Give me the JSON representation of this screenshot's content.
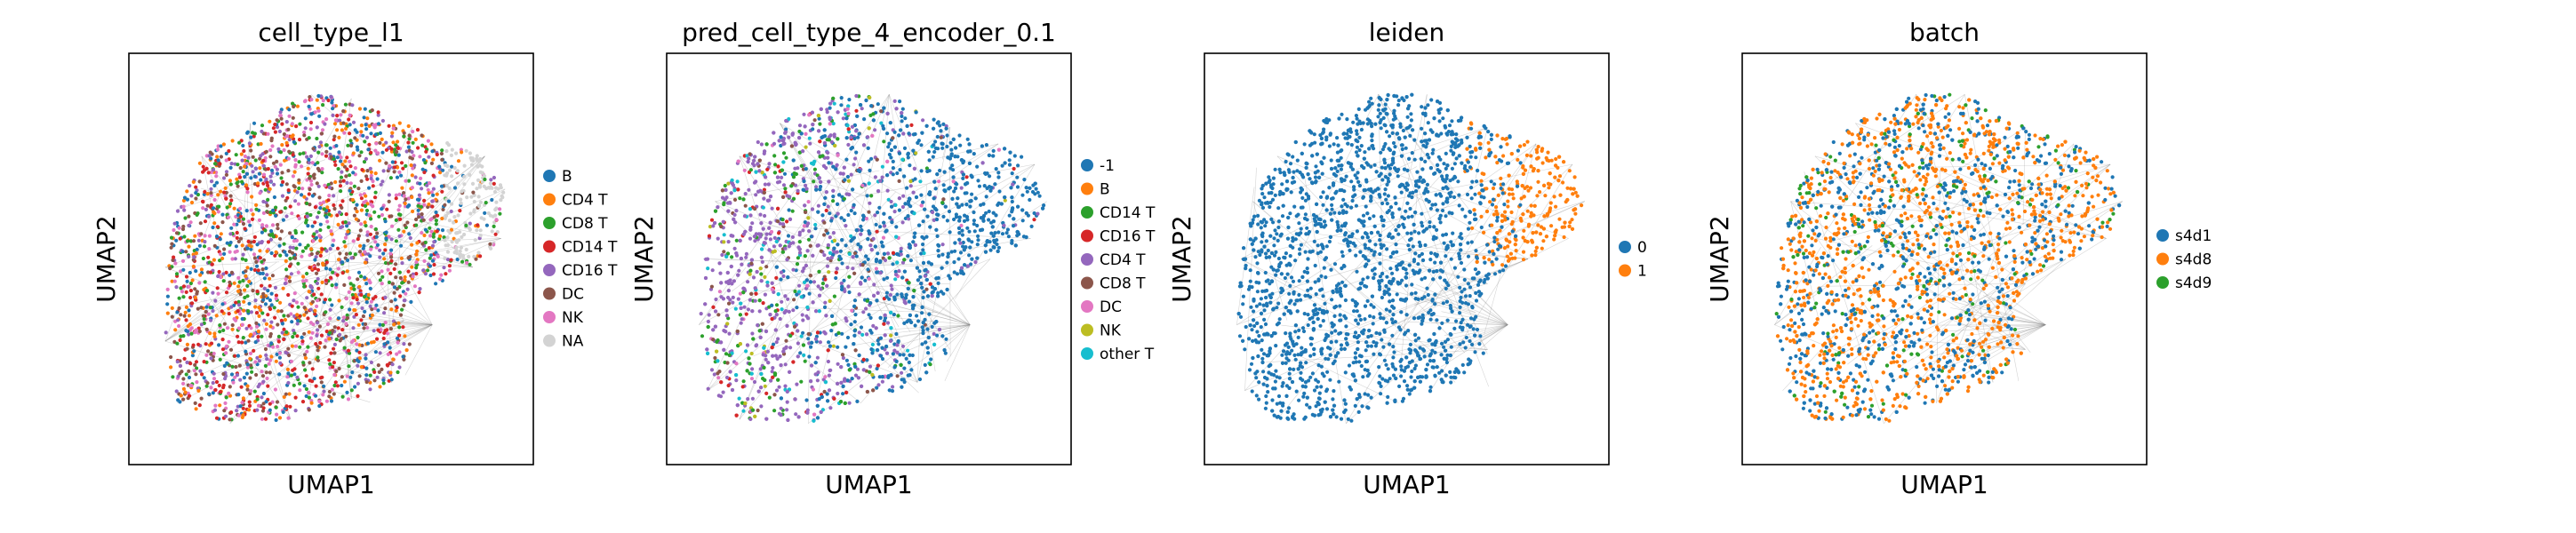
{
  "chart_data": [
    {
      "type": "scatter",
      "title": "cell_type_l1",
      "xlabel": "UMAP1",
      "ylabel": "UMAP2",
      "variant": "shape_a",
      "mix": "uniform",
      "legend": [
        {
          "label": "B",
          "color": "#1f77b4"
        },
        {
          "label": "CD4 T",
          "color": "#ff7f0e"
        },
        {
          "label": "CD8 T",
          "color": "#2ca02c"
        },
        {
          "label": "CD14 T",
          "color": "#d62728"
        },
        {
          "label": "CD16 T",
          "color": "#9467bd"
        },
        {
          "label": "DC",
          "color": "#8c564b"
        },
        {
          "label": "NK",
          "color": "#e377c2"
        },
        {
          "label": "NA",
          "color": "#d3d3d3"
        }
      ]
    },
    {
      "type": "scatter",
      "title": "pred_cell_type_4_encoder_0.1",
      "xlabel": "UMAP1",
      "ylabel": "UMAP2",
      "variant": "shape_b",
      "mix": "purple_left_blue_right",
      "legend": [
        {
          "label": "-1",
          "color": "#1f77b4"
        },
        {
          "label": "B",
          "color": "#ff7f0e"
        },
        {
          "label": "CD14 T",
          "color": "#2ca02c"
        },
        {
          "label": "CD16 T",
          "color": "#d62728"
        },
        {
          "label": "CD4 T",
          "color": "#9467bd"
        },
        {
          "label": "CD8 T",
          "color": "#8c564b"
        },
        {
          "label": "DC",
          "color": "#e377c2"
        },
        {
          "label": "NK",
          "color": "#bcbd22"
        },
        {
          "label": "other T",
          "color": "#17becf"
        }
      ]
    },
    {
      "type": "scatter",
      "title": "leiden",
      "xlabel": "UMAP1",
      "ylabel": "UMAP2",
      "variant": "shape_b",
      "mix": "blue_with_orange_right",
      "legend": [
        {
          "label": "0",
          "color": "#1f77b4"
        },
        {
          "label": "1",
          "color": "#ff7f0e"
        }
      ]
    },
    {
      "type": "scatter",
      "title": "batch",
      "xlabel": "UMAP1",
      "ylabel": "UMAP2",
      "variant": "shape_b",
      "mix": "batch_mix",
      "legend": [
        {
          "label": "s4d1",
          "color": "#1f77b4"
        },
        {
          "label": "s4d8",
          "color": "#ff7f0e"
        },
        {
          "label": "s4d9",
          "color": "#2ca02c"
        }
      ]
    }
  ]
}
